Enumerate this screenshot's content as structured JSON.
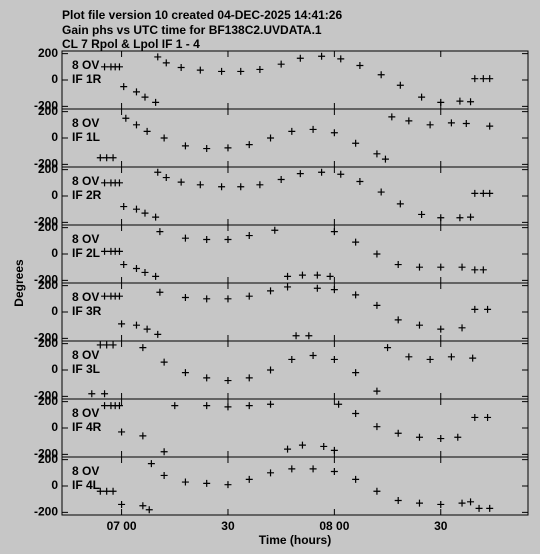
{
  "title": [
    "Plot file version 10  created 04-DEC-2025 14:41:26",
    "Gain phs vs UTC time for BF138C2.UVDATA.1",
    "CL 7  Rpol & Lpol  IF 1 - 4"
  ],
  "ylabel": "Degrees",
  "chart_data": [
    {
      "type": "scatter",
      "annotations": [
        "8 OV",
        "IF 1R"
      ],
      "xlim": [
        6.72,
        8.91
      ],
      "ylim": [
        -220,
        220
      ],
      "yticks": [
        200,
        0,
        -200
      ],
      "x": [
        6.92,
        6.95,
        6.97,
        6.99,
        7.01,
        7.07,
        7.11,
        7.16,
        7.17,
        7.21,
        7.28,
        7.37,
        7.47,
        7.56,
        7.65,
        7.75,
        7.84,
        7.94,
        8.03,
        8.12,
        8.22,
        8.31,
        8.41,
        8.5,
        8.59,
        8.64,
        8.66,
        8.7,
        8.73
      ],
      "values": [
        100,
        100,
        100,
        100,
        -50,
        -90,
        -130,
        -170,
        175,
        130,
        95,
        75,
        65,
        65,
        80,
        120,
        165,
        180,
        160,
        110,
        40,
        -40,
        -130,
        -170,
        -160,
        -165,
        10,
        10,
        10
      ]
    },
    {
      "type": "scatter",
      "annotations": [
        "8 OV",
        "IF 1L"
      ],
      "xlim": [
        6.72,
        8.91
      ],
      "ylim": [
        -220,
        220
      ],
      "yticks": [
        200,
        0,
        -200
      ],
      "x": [
        6.9,
        6.93,
        6.96,
        7.02,
        7.07,
        7.12,
        7.2,
        7.3,
        7.4,
        7.5,
        7.6,
        7.7,
        7.8,
        7.9,
        8.0,
        8.1,
        8.2,
        8.24,
        8.27,
        8.35,
        8.45,
        8.55,
        8.62,
        8.73
      ],
      "values": [
        -150,
        -150,
        -150,
        150,
        100,
        50,
        0,
        -60,
        -80,
        -75,
        -50,
        0,
        50,
        65,
        40,
        -40,
        -120,
        -160,
        160,
        130,
        100,
        115,
        110,
        90
      ]
    },
    {
      "type": "scatter",
      "annotations": [
        "8 OV",
        "IF 2R"
      ],
      "xlim": [
        6.72,
        8.91
      ],
      "ylim": [
        -220,
        220
      ],
      "yticks": [
        200,
        0,
        -200
      ],
      "x": [
        6.92,
        6.95,
        6.97,
        6.99,
        7.01,
        7.07,
        7.11,
        7.16,
        7.17,
        7.21,
        7.28,
        7.37,
        7.47,
        7.56,
        7.65,
        7.75,
        7.84,
        7.94,
        8.03,
        8.12,
        8.22,
        8.31,
        8.41,
        8.5,
        8.59,
        8.64,
        8.66,
        8.7,
        8.73
      ],
      "values": [
        100,
        100,
        100,
        100,
        -80,
        -100,
        -130,
        -160,
        180,
        140,
        105,
        85,
        70,
        70,
        85,
        125,
        170,
        180,
        165,
        110,
        30,
        -60,
        -140,
        -165,
        -165,
        -160,
        20,
        20,
        20
      ]
    },
    {
      "type": "scatter",
      "annotations": [
        "8 OV",
        "IF 2L"
      ],
      "xlim": [
        6.72,
        8.91
      ],
      "ylim": [
        -220,
        220
      ],
      "yticks": [
        200,
        0,
        -200
      ],
      "x": [
        6.92,
        6.95,
        6.97,
        6.99,
        7.01,
        7.07,
        7.11,
        7.16,
        7.18,
        7.3,
        7.4,
        7.5,
        7.6,
        7.72,
        7.78,
        7.85,
        7.92,
        7.98,
        8.0,
        8.1,
        8.2,
        8.3,
        8.4,
        8.5,
        8.6,
        8.66,
        8.7
      ],
      "values": [
        20,
        20,
        20,
        20,
        -80,
        -110,
        -140,
        -170,
        170,
        120,
        110,
        110,
        140,
        180,
        -170,
        -160,
        -160,
        -170,
        170,
        90,
        0,
        -80,
        -100,
        -100,
        -100,
        -120,
        -120
      ]
    },
    {
      "type": "scatter",
      "annotations": [
        "8 OV",
        "IF 3R"
      ],
      "xlim": [
        6.72,
        8.91
      ],
      "ylim": [
        -220,
        220
      ],
      "yticks": [
        200,
        0,
        -200
      ],
      "x": [
        6.92,
        6.95,
        6.97,
        6.99,
        7.0,
        7.07,
        7.12,
        7.17,
        7.18,
        7.3,
        7.4,
        7.5,
        7.6,
        7.7,
        7.78,
        7.82,
        7.88,
        7.92,
        8.0,
        8.1,
        8.2,
        8.3,
        8.4,
        8.5,
        8.6,
        8.66,
        8.72
      ],
      "values": [
        120,
        120,
        120,
        120,
        -90,
        -100,
        -130,
        -170,
        150,
        110,
        100,
        100,
        120,
        160,
        190,
        -180,
        -180,
        180,
        170,
        130,
        50,
        -60,
        -100,
        -130,
        -120,
        20,
        20
      ]
    },
    {
      "type": "scatter",
      "annotations": [
        "8 OV",
        "IF 3L"
      ],
      "xlim": [
        6.72,
        8.91
      ],
      "ylim": [
        -220,
        220
      ],
      "yticks": [
        200,
        0,
        -200
      ],
      "x": [
        6.86,
        6.9,
        6.92,
        6.93,
        6.96,
        7.1,
        7.2,
        7.3,
        7.4,
        7.5,
        7.6,
        7.7,
        7.8,
        7.9,
        8.0,
        8.1,
        8.2,
        8.25,
        8.35,
        8.45,
        8.55,
        8.65
      ],
      "values": [
        -180,
        190,
        -180,
        190,
        190,
        170,
        60,
        -20,
        -60,
        -80,
        -60,
        0,
        80,
        110,
        80,
        -20,
        -160,
        170,
        100,
        80,
        100,
        90
      ]
    },
    {
      "type": "scatter",
      "annotations": [
        "8 OV",
        "IF 4R"
      ],
      "xlim": [
        6.72,
        8.91
      ],
      "ylim": [
        -220,
        220
      ],
      "yticks": [
        200,
        0,
        -200
      ],
      "x": [
        6.92,
        6.95,
        6.97,
        6.99,
        7.0,
        7.1,
        7.2,
        7.25,
        7.4,
        7.5,
        7.6,
        7.7,
        7.78,
        7.85,
        7.95,
        8.0,
        8.02,
        8.1,
        8.2,
        8.3,
        8.4,
        8.5,
        8.58,
        8.66,
        8.72
      ],
      "values": [
        170,
        170,
        170,
        170,
        -30,
        -60,
        -180,
        170,
        170,
        160,
        170,
        180,
        -160,
        -130,
        -140,
        -170,
        180,
        110,
        10,
        -40,
        -70,
        -80,
        -70,
        80,
        80
      ]
    },
    {
      "type": "scatter",
      "annotations": [
        "8 OV",
        "IF 4L"
      ],
      "xlim": [
        6.72,
        8.91
      ],
      "ylim": [
        -220,
        220
      ],
      "yticks": [
        200,
        0,
        -200
      ],
      "xlabel": "Time (hours)",
      "xticks": [
        {
          "value": 7,
          "label": "07 00"
        },
        {
          "value": 7.5,
          "label": "30"
        },
        {
          "value": 8,
          "label": "08 00"
        },
        {
          "value": 8.5,
          "label": "30"
        }
      ],
      "x": [
        6.9,
        6.93,
        6.96,
        7.0,
        7.1,
        7.13,
        7.14,
        7.2,
        7.3,
        7.4,
        7.5,
        7.6,
        7.7,
        7.8,
        7.9,
        8.0,
        8.1,
        8.2,
        8.3,
        8.4,
        8.5,
        8.6,
        8.64,
        8.68,
        8.73
      ],
      "values": [
        -40,
        -40,
        -40,
        -140,
        -150,
        -180,
        170,
        80,
        30,
        20,
        10,
        50,
        100,
        130,
        130,
        110,
        50,
        -40,
        -110,
        -130,
        -140,
        -130,
        -120,
        -170,
        -170
      ]
    }
  ]
}
